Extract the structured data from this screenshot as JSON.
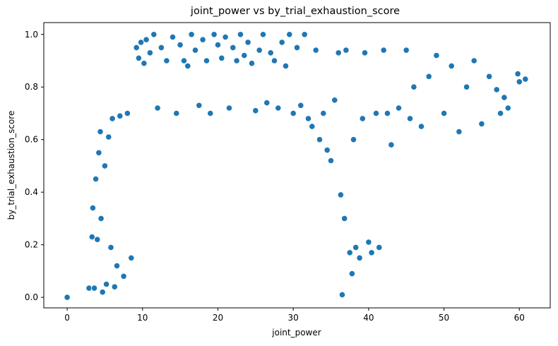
{
  "chart_data": {
    "type": "scatter",
    "title": "joint_power vs by_trial_exhaustion_score",
    "xlabel": "joint_power",
    "ylabel": "by_trial_exhaustion_score",
    "xlim": [
      -3.1,
      64.1
    ],
    "ylim": [
      -0.04,
      1.045
    ],
    "xticks": [
      0,
      10,
      20,
      30,
      40,
      50,
      60
    ],
    "xtick_labels": [
      "0",
      "10",
      "20",
      "30",
      "40",
      "50",
      "60"
    ],
    "yticks": [
      0.0,
      0.2,
      0.4,
      0.6,
      0.8,
      1.0
    ],
    "ytick_labels": [
      "0.0",
      "0.2",
      "0.4",
      "0.6",
      "0.8",
      "1.0"
    ],
    "grid": false,
    "legend": "none",
    "marker_color": "#1f77b4",
    "marker_edge": "#ffffff",
    "series": [
      {
        "points": [
          [
            0,
            0
          ],
          [
            2.9,
            0.035
          ],
          [
            3.3,
            0.23
          ],
          [
            3.4,
            0.34
          ],
          [
            3.6,
            0.035
          ],
          [
            3.8,
            0.45
          ],
          [
            4.0,
            0.22
          ],
          [
            4.2,
            0.55
          ],
          [
            4.4,
            0.63
          ],
          [
            4.5,
            0.3
          ],
          [
            4.7,
            0.02
          ],
          [
            5.0,
            0.5
          ],
          [
            5.2,
            0.05
          ],
          [
            5.5,
            0.61
          ],
          [
            5.8,
            0.19
          ],
          [
            6.0,
            0.68
          ],
          [
            6.3,
            0.04
          ],
          [
            6.6,
            0.12
          ],
          [
            7.0,
            0.69
          ],
          [
            7.5,
            0.08
          ],
          [
            8.0,
            0.7
          ],
          [
            8.5,
            0.15
          ],
          [
            9.2,
            0.95
          ],
          [
            9.5,
            0.91
          ],
          [
            9.8,
            0.97
          ],
          [
            10.2,
            0.89
          ],
          [
            10.5,
            0.98
          ],
          [
            11.0,
            0.93
          ],
          [
            11.5,
            1.0
          ],
          [
            12.0,
            0.72
          ],
          [
            12.5,
            0.95
          ],
          [
            13.2,
            0.9
          ],
          [
            14.0,
            0.99
          ],
          [
            14.5,
            0.7
          ],
          [
            15.0,
            0.96
          ],
          [
            15.5,
            0.9
          ],
          [
            16.0,
            0.88
          ],
          [
            16.5,
            1.0
          ],
          [
            17.0,
            0.94
          ],
          [
            17.5,
            0.73
          ],
          [
            18.0,
            0.98
          ],
          [
            18.5,
            0.9
          ],
          [
            19.0,
            0.7
          ],
          [
            19.5,
            1.0
          ],
          [
            20.0,
            0.96
          ],
          [
            20.5,
            0.91
          ],
          [
            21.0,
            0.99
          ],
          [
            21.5,
            0.72
          ],
          [
            22.0,
            0.95
          ],
          [
            22.5,
            0.9
          ],
          [
            23.0,
            1.0
          ],
          [
            23.5,
            0.92
          ],
          [
            24.0,
            0.97
          ],
          [
            24.5,
            0.89
          ],
          [
            25.0,
            0.71
          ],
          [
            25.5,
            0.94
          ],
          [
            26.0,
            1.0
          ],
          [
            26.5,
            0.74
          ],
          [
            27.0,
            0.93
          ],
          [
            27.5,
            0.9
          ],
          [
            28.0,
            0.72
          ],
          [
            28.5,
            0.97
          ],
          [
            29.0,
            0.88
          ],
          [
            29.5,
            1.0
          ],
          [
            30.0,
            0.7
          ],
          [
            30.5,
            0.95
          ],
          [
            31.0,
            0.73
          ],
          [
            31.5,
            1.0
          ],
          [
            32.0,
            0.68
          ],
          [
            32.5,
            0.65
          ],
          [
            33.0,
            0.94
          ],
          [
            33.5,
            0.6
          ],
          [
            34.0,
            0.7
          ],
          [
            34.5,
            0.56
          ],
          [
            35.0,
            0.52
          ],
          [
            35.5,
            0.75
          ],
          [
            36.0,
            0.93
          ],
          [
            36.3,
            0.39
          ],
          [
            36.5,
            0.01
          ],
          [
            36.8,
            0.3
          ],
          [
            37.0,
            0.94
          ],
          [
            37.5,
            0.17
          ],
          [
            37.8,
            0.09
          ],
          [
            38.0,
            0.6
          ],
          [
            38.3,
            0.19
          ],
          [
            38.8,
            0.15
          ],
          [
            39.2,
            0.68
          ],
          [
            39.5,
            0.93
          ],
          [
            40.0,
            0.21
          ],
          [
            40.4,
            0.17
          ],
          [
            41.0,
            0.7
          ],
          [
            41.4,
            0.19
          ],
          [
            42.0,
            0.94
          ],
          [
            42.5,
            0.7
          ],
          [
            43.0,
            0.58
          ],
          [
            44.0,
            0.72
          ],
          [
            45.0,
            0.94
          ],
          [
            45.5,
            0.68
          ],
          [
            46.0,
            0.8
          ],
          [
            47.0,
            0.65
          ],
          [
            48.0,
            0.84
          ],
          [
            49.0,
            0.92
          ],
          [
            50.0,
            0.7
          ],
          [
            51.0,
            0.88
          ],
          [
            52.0,
            0.63
          ],
          [
            53.0,
            0.8
          ],
          [
            54.0,
            0.9
          ],
          [
            55.0,
            0.66
          ],
          [
            56.0,
            0.84
          ],
          [
            57.0,
            0.79
          ],
          [
            57.5,
            0.7
          ],
          [
            58.0,
            0.76
          ],
          [
            58.5,
            0.72
          ],
          [
            59.8,
            0.85
          ],
          [
            60.0,
            0.82
          ],
          [
            60.8,
            0.83
          ]
        ]
      }
    ]
  }
}
